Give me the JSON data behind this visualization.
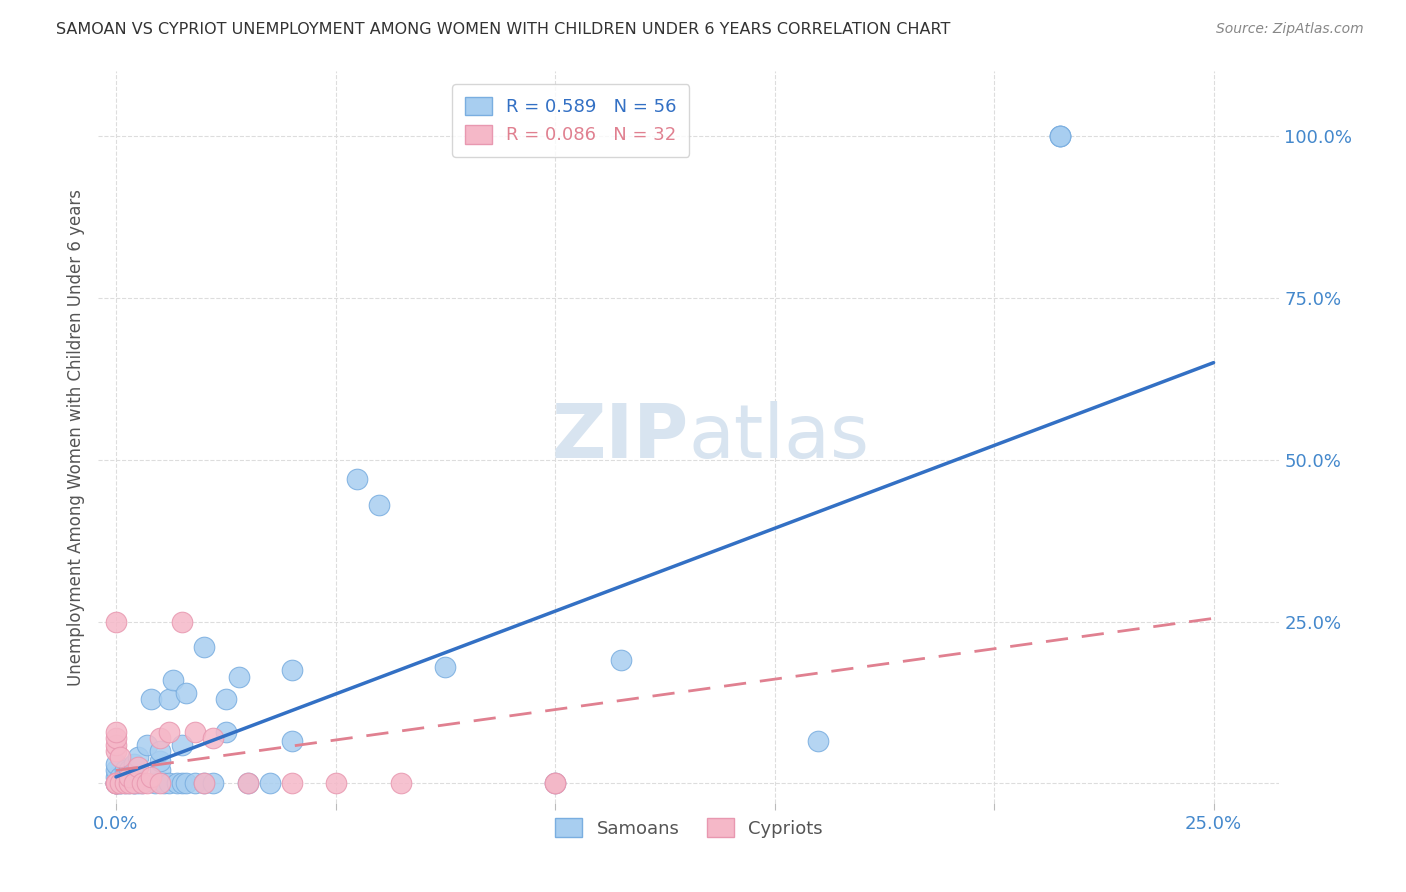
{
  "title": "SAMOAN VS CYPRIOT UNEMPLOYMENT AMONG WOMEN WITH CHILDREN UNDER 6 YEARS CORRELATION CHART",
  "source": "Source: ZipAtlas.com",
  "ylabel": "Unemployment Among Women with Children Under 6 years",
  "x_ticks": [
    0.0,
    0.05,
    0.1,
    0.15,
    0.2,
    0.25
  ],
  "x_tick_labels": [
    "0.0%",
    "",
    "",
    "",
    "",
    "25.0%"
  ],
  "y_ticks": [
    0.0,
    0.25,
    0.5,
    0.75,
    1.0
  ],
  "y_tick_labels_right": [
    "",
    "25.0%",
    "50.0%",
    "75.0%",
    "100.0%"
  ],
  "xlim": [
    -0.004,
    0.265
  ],
  "ylim": [
    -0.03,
    1.1
  ],
  "samoan_R": 0.589,
  "samoan_N": 56,
  "cypriot_R": 0.086,
  "cypriot_N": 32,
  "samoan_color": "#A8CEF0",
  "cypriot_color": "#F5B8C8",
  "samoan_edge_color": "#7AAEE0",
  "cypriot_edge_color": "#E898B0",
  "samoan_line_color": "#3370C4",
  "cypriot_line_color": "#E08090",
  "watermark_color": "#D8E4F0",
  "background_color": "#FFFFFF",
  "grid_color": "#DDDDDD",
  "tick_label_color": "#4488CC",
  "ylabel_color": "#555555",
  "title_color": "#333333",
  "source_color": "#888888",
  "samoan_x": [
    0.0,
    0.0,
    0.0,
    0.0,
    0.0,
    0.0,
    0.001,
    0.001,
    0.001,
    0.002,
    0.002,
    0.002,
    0.003,
    0.003,
    0.003,
    0.004,
    0.004,
    0.004,
    0.005,
    0.005,
    0.006,
    0.007,
    0.008,
    0.009,
    0.01,
    0.01,
    0.01,
    0.011,
    0.012,
    0.012,
    0.013,
    0.014,
    0.015,
    0.015,
    0.016,
    0.016,
    0.018,
    0.02,
    0.02,
    0.022,
    0.025,
    0.025,
    0.028,
    0.03,
    0.035,
    0.04,
    0.04,
    0.055,
    0.06,
    0.075,
    0.1,
    0.115,
    0.16,
    0.215,
    0.215,
    0.215
  ],
  "samoan_y": [
    0.0,
    0.0,
    0.0,
    0.01,
    0.02,
    0.03,
    0.0,
    0.0,
    0.01,
    0.0,
    0.01,
    0.02,
    0.0,
    0.01,
    0.02,
    0.0,
    0.0,
    0.03,
    0.0,
    0.04,
    0.0,
    0.06,
    0.13,
    0.0,
    0.02,
    0.035,
    0.05,
    0.0,
    0.0,
    0.13,
    0.16,
    0.0,
    0.0,
    0.06,
    0.0,
    0.14,
    0.0,
    0.0,
    0.21,
    0.0,
    0.13,
    0.08,
    0.165,
    0.0,
    0.0,
    0.065,
    0.175,
    0.47,
    0.43,
    0.18,
    0.0,
    0.19,
    0.065,
    1.0,
    1.0,
    1.0
  ],
  "cypriot_x": [
    0.0,
    0.0,
    0.0,
    0.0,
    0.0,
    0.0,
    0.0,
    0.0,
    0.0,
    0.001,
    0.001,
    0.002,
    0.003,
    0.003,
    0.004,
    0.005,
    0.006,
    0.007,
    0.008,
    0.01,
    0.01,
    0.012,
    0.015,
    0.018,
    0.02,
    0.022,
    0.03,
    0.04,
    0.05,
    0.065,
    0.1,
    0.1
  ],
  "cypriot_y": [
    0.0,
    0.0,
    0.0,
    0.0,
    0.05,
    0.06,
    0.07,
    0.08,
    0.25,
    0.0,
    0.04,
    0.0,
    0.0,
    0.01,
    0.0,
    0.025,
    0.0,
    0.0,
    0.01,
    0.0,
    0.07,
    0.08,
    0.25,
    0.08,
    0.0,
    0.07,
    0.0,
    0.0,
    0.0,
    0.0,
    0.0,
    0.0
  ],
  "samoan_line_x": [
    0.0,
    0.25
  ],
  "samoan_line_y": [
    0.01,
    0.65
  ],
  "cypriot_line_x": [
    0.0,
    0.25
  ],
  "cypriot_line_y": [
    0.02,
    0.255
  ]
}
